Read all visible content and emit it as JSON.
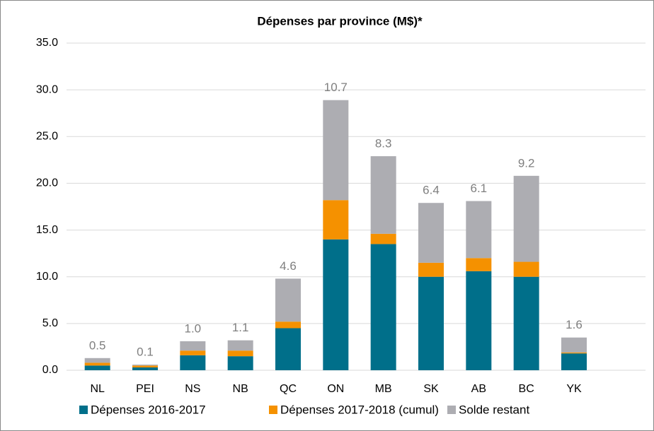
{
  "chart_data": {
    "type": "stacked_bar",
    "title": "Dépenses par province (M$)*",
    "categories": [
      "NL",
      "PEI",
      "NS",
      "NB",
      "QC",
      "ON",
      "MB",
      "SK",
      "AB",
      "BC",
      "YK",
      null
    ],
    "series": [
      {
        "name": "Dépenses 2016-2017",
        "color": "#006f8a",
        "values": [
          0.5,
          0.3,
          1.6,
          1.5,
          4.5,
          14.0,
          13.5,
          10.0,
          10.6,
          10.0,
          1.8,
          null
        ]
      },
      {
        "name": "Dépenses 2017-2018 (cumul)",
        "color": "#f59100",
        "values": [
          0.3,
          0.2,
          0.5,
          0.6,
          0.7,
          4.2,
          1.1,
          1.5,
          1.4,
          1.6,
          0.1,
          null
        ]
      },
      {
        "name": "Solde restant",
        "color": "#adadb2",
        "values": [
          0.5,
          0.1,
          1.0,
          1.1,
          4.6,
          10.7,
          8.3,
          6.4,
          6.1,
          9.2,
          1.6,
          null
        ],
        "value_labels": [
          "0.5",
          "0.1",
          "1.0",
          "1.1",
          "4.6",
          "10.7",
          "8.3",
          "6.4",
          "6.1",
          "9.2",
          "1.6",
          null
        ]
      }
    ],
    "ylim": [
      0,
      35
    ],
    "yticks": [
      {
        "value": 0,
        "label": "0.0"
      },
      {
        "value": 5,
        "label": "5.0"
      },
      {
        "value": 10,
        "label": "10.0"
      },
      {
        "value": 15,
        "label": "15.0"
      },
      {
        "value": 20,
        "label": "20.0"
      },
      {
        "value": 25,
        "label": "25.0"
      },
      {
        "value": 30,
        "label": "30.0"
      },
      {
        "value": 35,
        "label": "35.0"
      }
    ],
    "grid": true,
    "legend": "bottom"
  }
}
